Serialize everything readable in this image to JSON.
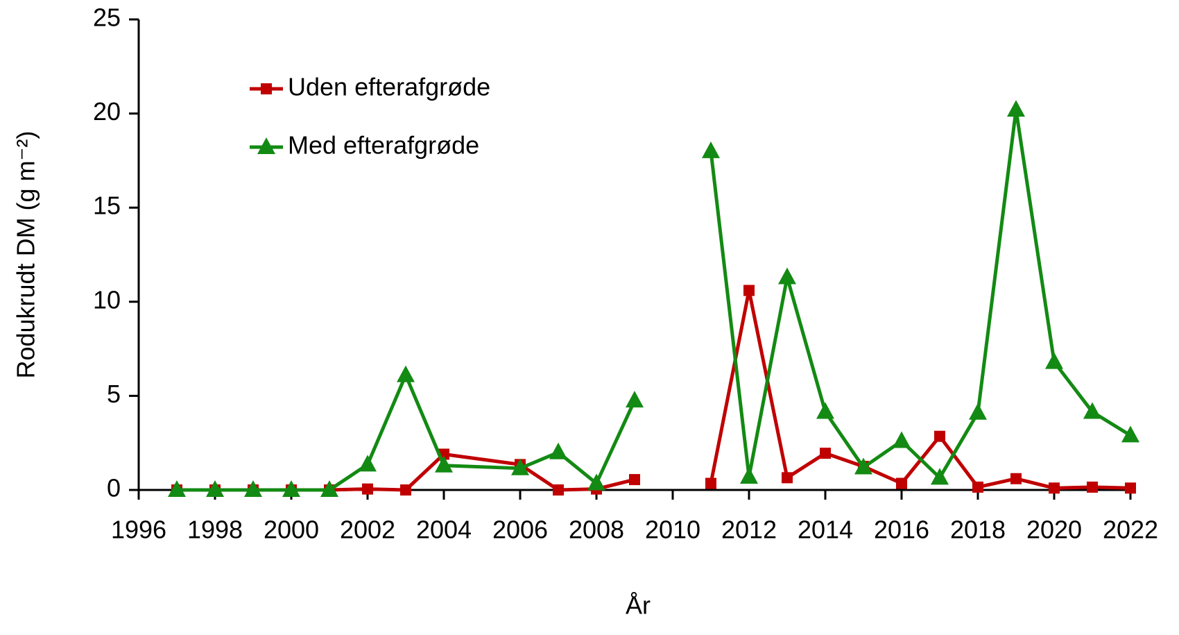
{
  "chart_data": {
    "type": "line",
    "x_label": "År",
    "y_label": "Rodukrudt DM (g m⁻²)",
    "x": [
      1997,
      1998,
      1999,
      2000,
      2001,
      2002,
      2003,
      2004,
      2006,
      2007,
      2008,
      2009,
      2010,
      2011,
      2012,
      2013,
      2014,
      2015,
      2016,
      2017,
      2018,
      2019,
      2020,
      2021,
      2022
    ],
    "series": [
      {
        "name": "Uden efterafgrøde",
        "color": "#c00000",
        "marker": "square",
        "values": [
          0,
          0,
          0,
          0,
          0,
          0.05,
          0,
          1.9,
          1.35,
          0,
          0.05,
          0.55,
          null,
          0.35,
          10.6,
          0.65,
          1.95,
          1.25,
          0.35,
          2.85,
          0.15,
          0.6,
          0.1,
          0.15,
          0.1
        ]
      },
      {
        "name": "Med efterafgrøde",
        "color": "#138a13",
        "marker": "triangle",
        "values": [
          0,
          0,
          0,
          0,
          0,
          1.35,
          6.1,
          1.3,
          1.15,
          2.0,
          0.35,
          4.75,
          null,
          18.0,
          0.7,
          11.3,
          4.15,
          1.2,
          2.6,
          0.65,
          4.1,
          20.2,
          6.8,
          4.15,
          2.9
        ]
      }
    ],
    "xlim": [
      1996,
      2022
    ],
    "xticks": [
      1996,
      1998,
      2000,
      2002,
      2004,
      2006,
      2008,
      2010,
      2012,
      2014,
      2016,
      2018,
      2020,
      2022
    ],
    "ylim": [
      0,
      25
    ],
    "yticks": [
      0,
      5,
      10,
      15,
      20,
      25
    ],
    "grid": false,
    "legend": "upper left"
  }
}
